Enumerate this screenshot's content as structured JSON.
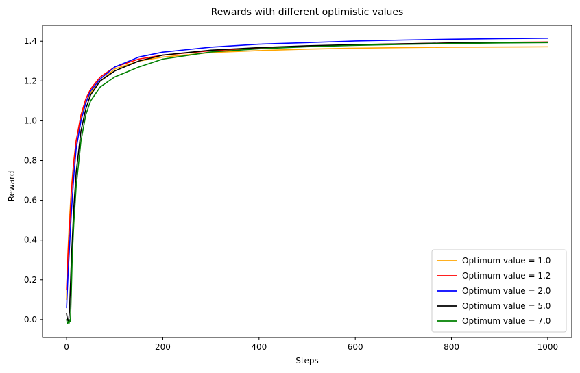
{
  "chart_data": {
    "type": "line",
    "title": "Rewards with different optimistic values",
    "xlabel": "Steps",
    "ylabel": "Reward",
    "xlim": [
      -50,
      1050
    ],
    "ylim": [
      -0.09,
      1.48
    ],
    "xticks": [
      0,
      200,
      400,
      600,
      800,
      1000
    ],
    "yticks": [
      0.0,
      0.2,
      0.4,
      0.6,
      0.8,
      1.0,
      1.2,
      1.4
    ],
    "xtick_labels": [
      "0",
      "200",
      "400",
      "600",
      "800",
      "1000"
    ],
    "ytick_labels": [
      "0.0",
      "0.2",
      "0.4",
      "0.6",
      "0.8",
      "1.0",
      "1.2",
      "1.4"
    ],
    "grid": false,
    "legend_position": "lower-right",
    "series": [
      {
        "name": "Optimum value = 1.0",
        "color": "#ffa500",
        "points": [
          [
            0,
            0.1
          ],
          [
            3,
            0.35
          ],
          [
            6,
            0.5
          ],
          [
            10,
            0.66
          ],
          [
            15,
            0.8
          ],
          [
            20,
            0.9
          ],
          [
            30,
            1.02
          ],
          [
            40,
            1.09
          ],
          [
            50,
            1.14
          ],
          [
            70,
            1.2
          ],
          [
            100,
            1.26
          ],
          [
            150,
            1.3
          ],
          [
            200,
            1.32
          ],
          [
            300,
            1.343
          ],
          [
            400,
            1.353
          ],
          [
            500,
            1.36
          ],
          [
            600,
            1.365
          ],
          [
            700,
            1.368
          ],
          [
            800,
            1.37
          ],
          [
            900,
            1.371
          ],
          [
            1000,
            1.372
          ]
        ]
      },
      {
        "name": "Optimum value = 1.2",
        "color": "#ff0000",
        "points": [
          [
            0,
            0.15
          ],
          [
            3,
            0.33
          ],
          [
            6,
            0.46
          ],
          [
            10,
            0.64
          ],
          [
            15,
            0.79
          ],
          [
            20,
            0.9
          ],
          [
            30,
            1.03
          ],
          [
            40,
            1.11
          ],
          [
            50,
            1.16
          ],
          [
            70,
            1.22
          ],
          [
            100,
            1.27
          ],
          [
            150,
            1.31
          ],
          [
            200,
            1.33
          ],
          [
            300,
            1.352
          ],
          [
            400,
            1.366
          ],
          [
            500,
            1.375
          ],
          [
            600,
            1.382
          ],
          [
            700,
            1.387
          ],
          [
            800,
            1.391
          ],
          [
            900,
            1.394
          ],
          [
            1000,
            1.396
          ]
        ]
      },
      {
        "name": "Optimum value = 2.0",
        "color": "#0000ff",
        "points": [
          [
            0,
            0.06
          ],
          [
            3,
            0.22
          ],
          [
            6,
            0.36
          ],
          [
            10,
            0.54
          ],
          [
            15,
            0.72
          ],
          [
            20,
            0.86
          ],
          [
            30,
            1.0
          ],
          [
            40,
            1.09
          ],
          [
            50,
            1.15
          ],
          [
            70,
            1.21
          ],
          [
            100,
            1.27
          ],
          [
            150,
            1.32
          ],
          [
            200,
            1.345
          ],
          [
            300,
            1.37
          ],
          [
            400,
            1.385
          ],
          [
            500,
            1.393
          ],
          [
            600,
            1.401
          ],
          [
            700,
            1.406
          ],
          [
            800,
            1.41
          ],
          [
            900,
            1.413
          ],
          [
            1000,
            1.415
          ]
        ]
      },
      {
        "name": "Optimum value = 5.0",
        "color": "#000000",
        "points": [
          [
            0,
            0.03
          ],
          [
            2,
            0.0
          ],
          [
            4,
            -0.01
          ],
          [
            6,
            0.04
          ],
          [
            10,
            0.3
          ],
          [
            15,
            0.56
          ],
          [
            20,
            0.74
          ],
          [
            30,
            0.95
          ],
          [
            40,
            1.06
          ],
          [
            50,
            1.13
          ],
          [
            70,
            1.2
          ],
          [
            100,
            1.25
          ],
          [
            150,
            1.3
          ],
          [
            200,
            1.33
          ],
          [
            300,
            1.355
          ],
          [
            400,
            1.368
          ],
          [
            500,
            1.377
          ],
          [
            600,
            1.383
          ],
          [
            700,
            1.387
          ],
          [
            800,
            1.391
          ],
          [
            900,
            1.393
          ],
          [
            1000,
            1.395
          ]
        ]
      },
      {
        "name": "Optimum value = 7.0",
        "color": "#008000",
        "points": [
          [
            0,
            0.0
          ],
          [
            1,
            -0.01
          ],
          [
            2,
            -0.02
          ],
          [
            4,
            -0.01
          ],
          [
            5,
            -0.02
          ],
          [
            7,
            0.0
          ],
          [
            8,
            -0.01
          ],
          [
            10,
            0.15
          ],
          [
            12,
            0.33
          ],
          [
            15,
            0.48
          ],
          [
            20,
            0.67
          ],
          [
            30,
            0.9
          ],
          [
            40,
            1.03
          ],
          [
            50,
            1.1
          ],
          [
            70,
            1.17
          ],
          [
            100,
            1.22
          ],
          [
            150,
            1.27
          ],
          [
            200,
            1.31
          ],
          [
            300,
            1.346
          ],
          [
            400,
            1.362
          ],
          [
            500,
            1.372
          ],
          [
            600,
            1.379
          ],
          [
            700,
            1.384
          ],
          [
            800,
            1.388
          ],
          [
            900,
            1.391
          ],
          [
            1000,
            1.393
          ]
        ]
      }
    ]
  }
}
